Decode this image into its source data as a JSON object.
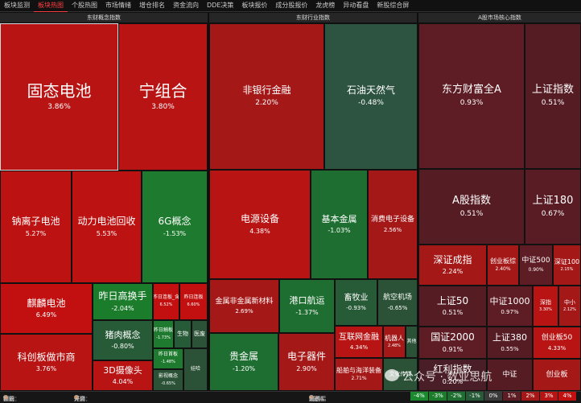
{
  "tabs": [
    "板块监测",
    "板块热图",
    "个股热图",
    "市场情绪",
    "增仓排名",
    "资金流向",
    "DDE决策",
    "板块报价",
    "成分股报价",
    "龙虎榜",
    "异动看盘",
    "新股综合屏"
  ],
  "active_tab": 1,
  "panels": {
    "concept": "东财概念指数",
    "industry": "东财行业指数",
    "market": "A股市场核心指数"
  },
  "tiles": [
    {
      "name": "固态电池",
      "value": "3.86%",
      "color": "#b81414",
      "selected": true
    },
    {
      "name": "宁组合",
      "value": "3.80%",
      "color": "#b81414"
    },
    {
      "name": "钠离子电池",
      "value": "5.27%",
      "color": "#bd1212"
    },
    {
      "name": "动力电池回收",
      "value": "5.53%",
      "color": "#bd1212"
    },
    {
      "name": "6G概念",
      "value": "-1.53%",
      "color": "#1e7a2e"
    },
    {
      "name": "麒麟电池",
      "value": "6.49%",
      "color": "#c21010"
    },
    {
      "name": "昨日高换手",
      "value": "-2.04%",
      "color": "#1b7d2c"
    },
    {
      "name": "昨日连板_含",
      "value": "6.52%",
      "color": "#c21010"
    },
    {
      "name": "昨日连板",
      "value": "6.60%",
      "color": "#c21010"
    },
    {
      "name": "猪肉概念",
      "value": "-0.80%",
      "color": "#275a36"
    },
    {
      "name": "昨日触板",
      "value": "-1.73%",
      "color": "#1e7a2e"
    },
    {
      "name": "生物",
      "value": "",
      "color": "#275a36"
    },
    {
      "name": "医废",
      "value": "",
      "color": "#2b5236"
    },
    {
      "name": "科创板做市商",
      "value": "3.76%",
      "color": "#b81414"
    },
    {
      "name": "3D摄像头",
      "value": "4.04%",
      "color": "#b81414"
    },
    {
      "name": "昨日首板",
      "value": "-1.48%",
      "color": "#1e7a2e"
    },
    {
      "name": "影视概念",
      "value": "-0.65%",
      "color": "#2b5236"
    },
    {
      "name": "娃哈",
      "value": "",
      "color": "#2b5236"
    },
    {
      "name": "非银行金融",
      "value": "2.20%",
      "color": "#a51818"
    },
    {
      "name": "石油天然气",
      "value": "-0.48%",
      "color": "#2d5341"
    },
    {
      "name": "电源设备",
      "value": "4.38%",
      "color": "#b81414"
    },
    {
      "name": "基本金属",
      "value": "-1.03%",
      "color": "#1f6e31"
    },
    {
      "name": "消费电子设备",
      "value": "2.56%",
      "color": "#a51818"
    },
    {
      "name": "金属非金属新材料",
      "value": "2.69%",
      "color": "#a51818"
    },
    {
      "name": "港口航运",
      "value": "-1.37%",
      "color": "#1f6e31"
    },
    {
      "name": "畜牧业",
      "value": "-0.93%",
      "color": "#275a36"
    },
    {
      "name": "航空机场",
      "value": "-0.65%",
      "color": "#2b5236"
    },
    {
      "name": "互联网金融",
      "value": "4.34%",
      "color": "#b81414"
    },
    {
      "name": "机器人",
      "value": "2.48%",
      "color": "#a51818"
    },
    {
      "name": "其他",
      "value": "",
      "color": "#2b5236"
    },
    {
      "name": "贵金属",
      "value": "-1.20%",
      "color": "#1f6e31"
    },
    {
      "name": "电子器件",
      "value": "2.90%",
      "color": "#a51818"
    },
    {
      "name": "船舶与海洋装备",
      "value": "2.71%",
      "color": "#a51818"
    },
    {
      "name": "文化传媒",
      "value": "",
      "color": "#2b5236"
    },
    {
      "name": "东方财富全A",
      "value": "0.93%",
      "color": "#5e1c24"
    },
    {
      "name": "上证指数",
      "value": "0.51%",
      "color": "#561c24"
    },
    {
      "name": "A股指数",
      "value": "0.51%",
      "color": "#561c24"
    },
    {
      "name": "上证180",
      "value": "0.67%",
      "color": "#5a1c24"
    },
    {
      "name": "深证成指",
      "value": "2.24%",
      "color": "#a51818"
    },
    {
      "name": "创业板综",
      "value": "2.40%",
      "color": "#a51818"
    },
    {
      "name": "中证500",
      "value": "0.90%",
      "color": "#5e1c24"
    },
    {
      "name": "深证100",
      "value": "2.15%",
      "color": "#a51818"
    },
    {
      "name": "上证50",
      "value": "0.51%",
      "color": "#561c24"
    },
    {
      "name": "中证1000",
      "value": "0.97%",
      "color": "#5e1c24"
    },
    {
      "name": "深指",
      "value": "3.30%",
      "color": "#b81414"
    },
    {
      "name": "中小",
      "value": "2.12%",
      "color": "#a51818"
    },
    {
      "name": "国证2000",
      "value": "0.91%",
      "color": "#5e1c24"
    },
    {
      "name": "上证380",
      "value": "0.55%",
      "color": "#561c24"
    },
    {
      "name": "创业板50",
      "value": "4.33%",
      "color": "#b81414"
    },
    {
      "name": "红利指数",
      "value": "0.20%",
      "color": "#4a1e26"
    },
    {
      "name": "中证",
      "value": "",
      "color": "#561c24"
    },
    {
      "name": "创业板",
      "value": "",
      "color": "#a51818"
    }
  ],
  "status": {
    "scale_label": "面积：",
    "scale_opt1": "市值",
    "scale_opt2": "相同",
    "float_label": "浮窗：",
    "float_opt1": "开启",
    "float_opt2": "关闭",
    "color_label": "颜色：",
    "color_opt1": "涨跌幅",
    "color_opt2": "5分钟",
    "color_opt3": "5日"
  },
  "legend": [
    {
      "label": "-4%",
      "color": "#1b8a2e"
    },
    {
      "label": "-3%",
      "color": "#1b7d2c"
    },
    {
      "label": "-2%",
      "color": "#1f6e31"
    },
    {
      "label": "-1%",
      "color": "#275a36"
    },
    {
      "label": "0%",
      "color": "#3a3a3a"
    },
    {
      "label": "1%",
      "color": "#5e1c24"
    },
    {
      "label": "2%",
      "color": "#a51818"
    },
    {
      "label": "3%",
      "color": "#b81414"
    },
    {
      "label": "4%",
      "color": "#c21010"
    }
  ],
  "watermark": "公众号 · 数业思航"
}
